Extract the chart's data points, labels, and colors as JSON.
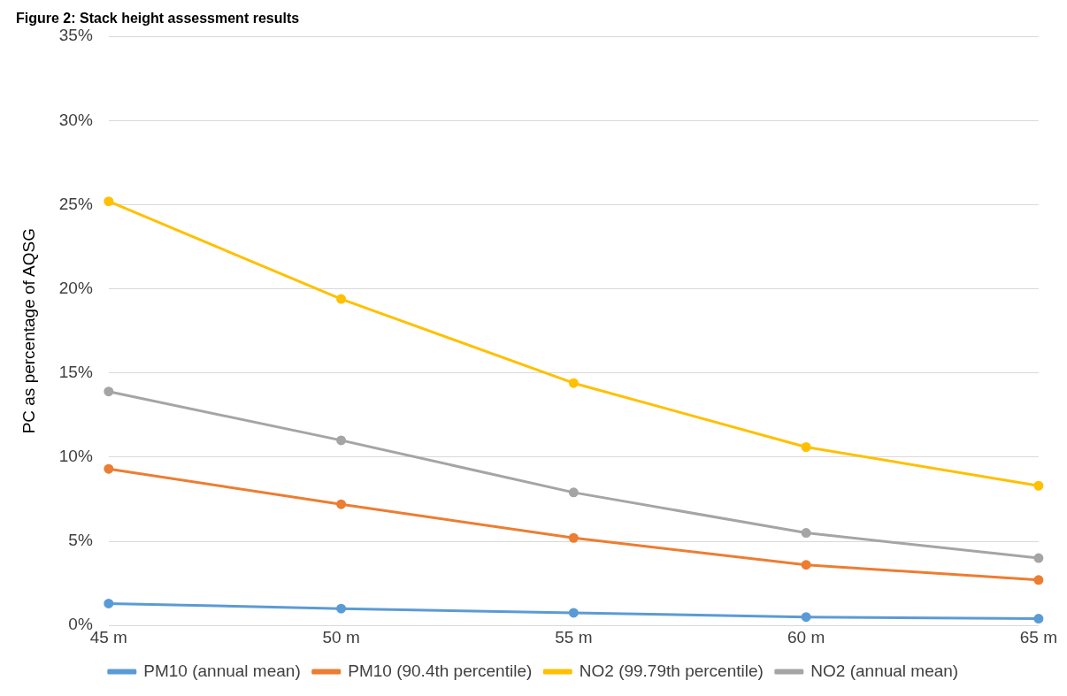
{
  "chart_data": {
    "type": "line",
    "title": "Figure 2: Stack height assessment results",
    "ylabel": "PC as percentage of AQSG",
    "categories": [
      "45 m",
      "50 m",
      "55 m",
      "60 m",
      "65 m"
    ],
    "series": [
      {
        "name": "PM10 (annual mean)",
        "color": "#5b9bd5",
        "values": [
          1.3,
          1.0,
          0.75,
          0.5,
          0.4
        ]
      },
      {
        "name": "PM10 (90.4th percentile)",
        "color": "#ed7d31",
        "values": [
          9.3,
          7.2,
          5.2,
          3.6,
          2.7
        ]
      },
      {
        "name": "NO2 (99.79th percentile)",
        "color": "#ffc000",
        "values": [
          25.2,
          19.4,
          14.4,
          10.6,
          8.3
        ]
      },
      {
        "name": "NO2 (annual mean)",
        "color": "#a5a5a5",
        "values": [
          13.9,
          11.0,
          7.9,
          5.5,
          4.0
        ]
      }
    ],
    "ylim": [
      0,
      35
    ],
    "yticks": [
      {
        "value": 0,
        "label": "0%"
      },
      {
        "value": 5,
        "label": "5%"
      },
      {
        "value": 10,
        "label": "10%"
      },
      {
        "value": 15,
        "label": "15%"
      },
      {
        "value": 20,
        "label": "20%"
      },
      {
        "value": 25,
        "label": "25%"
      },
      {
        "value": 30,
        "label": "30%"
      },
      {
        "value": 35,
        "label": "35%"
      }
    ],
    "grid": "y",
    "legend": "bottom",
    "marker": "circle",
    "line_style": "solid"
  }
}
